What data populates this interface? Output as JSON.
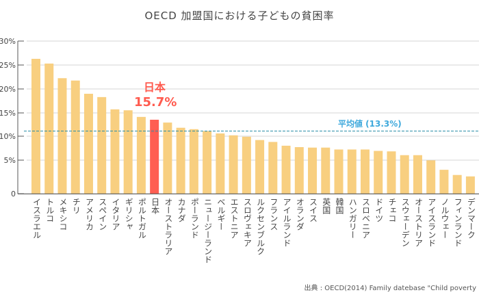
{
  "chart_data": {
    "type": "bar",
    "title": "OECD 加盟国における子どもの貧困率",
    "categories": [
      "イスラエル",
      "トルコ",
      "メキシコ",
      "チリ",
      "アメリカ",
      "スペイン",
      "イタリア",
      "ギリシャ",
      "ポルトガル",
      "日本",
      "オーストラリア",
      "カナダ",
      "ポーランド",
      "ニュージーランド",
      "ベルギー",
      "エストニア",
      "スロヴェキア",
      "ルクセンブルク",
      "フランス",
      "アイルランド",
      "オランダ",
      "スイス",
      "英国",
      "韓国",
      "ハンガリー",
      "スロベニア",
      "ドイツ",
      "チェコ",
      "スウェーデン",
      "オーストリア",
      "アイスランド",
      "ノルウェー",
      "フィンランド",
      "デンマーク"
    ],
    "values": [
      28.6,
      27.6,
      24.5,
      24.0,
      21.2,
      20.5,
      17.9,
      17.7,
      16.3,
      15.7,
      15.1,
      14.0,
      13.7,
      13.3,
      12.8,
      12.4,
      12.1,
      11.4,
      11.0,
      10.2,
      9.9,
      9.8,
      9.8,
      9.4,
      9.4,
      9.4,
      9.1,
      9.0,
      8.2,
      8.2,
      7.1,
      5.1,
      4.0,
      3.7
    ],
    "unit": "%",
    "y_ticks": [
      "30%",
      "25%",
      "20%",
      "15%",
      "10%",
      "5%",
      "0"
    ],
    "ylim": [
      0,
      30
    ],
    "grid": true,
    "highlight": {
      "category": "日本",
      "label": "日本",
      "value_label": "15.7%",
      "color": "#ff5e52"
    },
    "bar_color": "#f8cf80",
    "average": {
      "label": "平均値 (13.3%)",
      "value": 13.3,
      "color": "#2a8fa8",
      "label_color": "#3fa9dc"
    },
    "source": "出典 : OECD(2014) Family datebase \"Child poverty"
  }
}
